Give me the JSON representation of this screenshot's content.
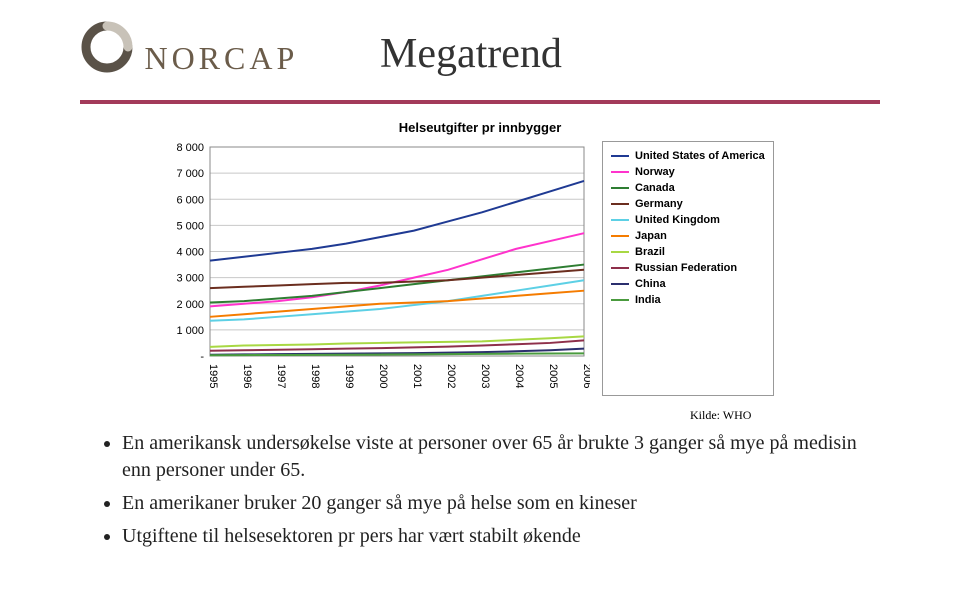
{
  "title": "Megatrend",
  "logo_text": "NORCAP",
  "rule_color": "#a33a5a",
  "source": "Kilde: WHO",
  "bullets": [
    "En amerikansk undersøkelse viste at personer over 65 år brukte 3 ganger så mye på medisin enn personer under 65.",
    "En amerikaner bruker 20 ganger så mye på helse som en kineser",
    "Utgiftene til helsesektoren pr pers har vært stabilt økende"
  ],
  "chart": {
    "type": "line",
    "title": "Helseutgifter pr innbygger",
    "title_fontsize": 13,
    "background_color": "#ffffff",
    "grid_color": "#c8c8c8",
    "plot_border_color": "#888888",
    "ylim": [
      0,
      8000
    ],
    "ytick_step": 1000,
    "yticks": [
      "-",
      "1 000",
      "2 000",
      "3 000",
      "4 000",
      "5 000",
      "6 000",
      "7 000",
      "8 000"
    ],
    "xvals": [
      "1995",
      "1996",
      "1997",
      "1998",
      "1999",
      "2000",
      "2001",
      "2002",
      "2003",
      "2004",
      "2005",
      "2006"
    ],
    "line_width": 2,
    "series": [
      {
        "name": "United States of America",
        "color": "#1f3a93",
        "values": [
          3650,
          3800,
          3950,
          4100,
          4300,
          4550,
          4800,
          5150,
          5500,
          5900,
          6300,
          6700
        ]
      },
      {
        "name": "Norway",
        "color": "#ff33cc",
        "values": [
          1900,
          2000,
          2100,
          2250,
          2450,
          2700,
          3000,
          3300,
          3700,
          4100,
          4400,
          4700
        ]
      },
      {
        "name": "Canada",
        "color": "#2e7d32",
        "values": [
          2050,
          2100,
          2200,
          2300,
          2450,
          2600,
          2750,
          2900,
          3050,
          3200,
          3350,
          3500
        ]
      },
      {
        "name": "Germany",
        "color": "#6b2e1f",
        "values": [
          2600,
          2650,
          2700,
          2750,
          2800,
          2800,
          2850,
          2900,
          3000,
          3100,
          3200,
          3300
        ]
      },
      {
        "name": "United Kingdom",
        "color": "#5dd0e5",
        "values": [
          1350,
          1400,
          1500,
          1600,
          1700,
          1800,
          1950,
          2100,
          2300,
          2500,
          2700,
          2900
        ]
      },
      {
        "name": "Japan",
        "color": "#f57c00",
        "values": [
          1500,
          1600,
          1700,
          1800,
          1900,
          2000,
          2050,
          2100,
          2200,
          2300,
          2400,
          2500
        ]
      },
      {
        "name": "Brazil",
        "color": "#a8d843",
        "values": [
          350,
          400,
          420,
          440,
          480,
          500,
          520,
          540,
          560,
          620,
          680,
          750
        ]
      },
      {
        "name": "Russian Federation",
        "color": "#8e2f4a",
        "values": [
          200,
          220,
          240,
          260,
          280,
          300,
          330,
          360,
          400,
          450,
          500,
          600
        ]
      },
      {
        "name": "China",
        "color": "#2b2f6e",
        "values": [
          50,
          60,
          70,
          80,
          90,
          100,
          110,
          130,
          150,
          180,
          220,
          280
        ]
      },
      {
        "name": "India",
        "color": "#4a9b3e",
        "values": [
          30,
          35,
          40,
          45,
          50,
          55,
          60,
          70,
          80,
          90,
          95,
          100
        ]
      }
    ]
  }
}
